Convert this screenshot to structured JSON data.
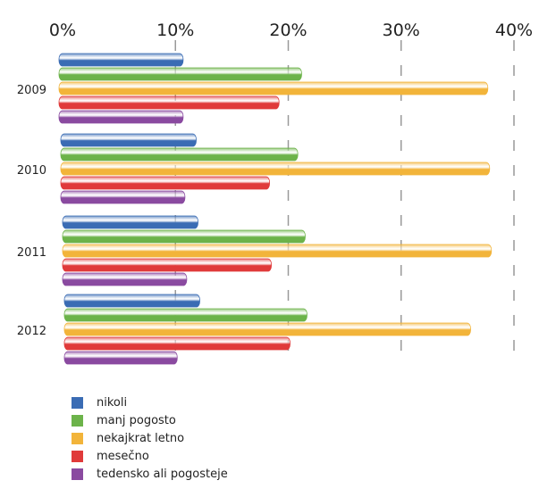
{
  "chart_data": {
    "type": "bar",
    "orientation": "horizontal",
    "categories": [
      "2009",
      "2010",
      "2011",
      "2012"
    ],
    "series": [
      {
        "name": "nikoli",
        "color": "#3a6cb4",
        "values": [
          11,
          12,
          12,
          12
        ]
      },
      {
        "name": "manj pogosto",
        "color": "#6cb34a",
        "values": [
          21.5,
          21,
          21.5,
          21.5
        ]
      },
      {
        "name": "nekajkrat letno",
        "color": "#f2b43a",
        "values": [
          38,
          38,
          38,
          36
        ]
      },
      {
        "name": "mesečno",
        "color": "#e03a3a",
        "values": [
          19.5,
          18.5,
          18.5,
          20
        ]
      },
      {
        "name": "tedensko ali pogosteje",
        "color": "#8a4aa0",
        "values": [
          11,
          11,
          11,
          10
        ]
      }
    ],
    "xticks": [
      "0%",
      "10%",
      "20%",
      "30%",
      "40%"
    ],
    "xlim": [
      0,
      40
    ],
    "grid": "vertical dashed",
    "legend": "bottom"
  }
}
